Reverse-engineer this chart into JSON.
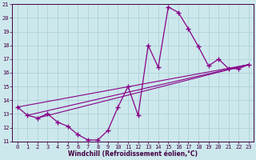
{
  "xlabel": "Windchill (Refroidissement éolien,°C)",
  "background_color": "#cce8ec",
  "grid_color": "#aacdd4",
  "line_color": "#880088",
  "xlim": [
    -0.5,
    23.5
  ],
  "ylim": [
    11,
    21
  ],
  "yticks": [
    11,
    12,
    13,
    14,
    15,
    16,
    17,
    18,
    19,
    20,
    21
  ],
  "xticks": [
    0,
    1,
    2,
    3,
    4,
    5,
    6,
    7,
    8,
    9,
    10,
    11,
    12,
    13,
    14,
    15,
    16,
    17,
    18,
    19,
    20,
    21,
    22,
    23
  ],
  "curve_x": [
    0,
    1,
    2,
    3,
    4,
    5,
    6,
    7,
    8,
    9,
    10,
    11,
    12,
    13,
    14,
    15,
    16,
    17,
    18,
    19,
    20,
    21,
    22,
    23
  ],
  "curve_y": [
    13.5,
    12.9,
    12.7,
    13.0,
    12.4,
    12.1,
    11.5,
    11.1,
    11.1,
    11.8,
    13.5,
    15.0,
    12.9,
    18.0,
    16.4,
    20.8,
    20.4,
    19.2,
    17.9,
    16.5,
    17.0,
    16.3,
    16.3,
    16.6
  ],
  "line1_x": [
    0,
    23
  ],
  "line1_y": [
    13.5,
    16.6
  ],
  "line2_x": [
    1,
    23
  ],
  "line2_y": [
    12.9,
    16.6
  ],
  "line3_x": [
    2,
    23
  ],
  "line3_y": [
    12.7,
    16.6
  ]
}
